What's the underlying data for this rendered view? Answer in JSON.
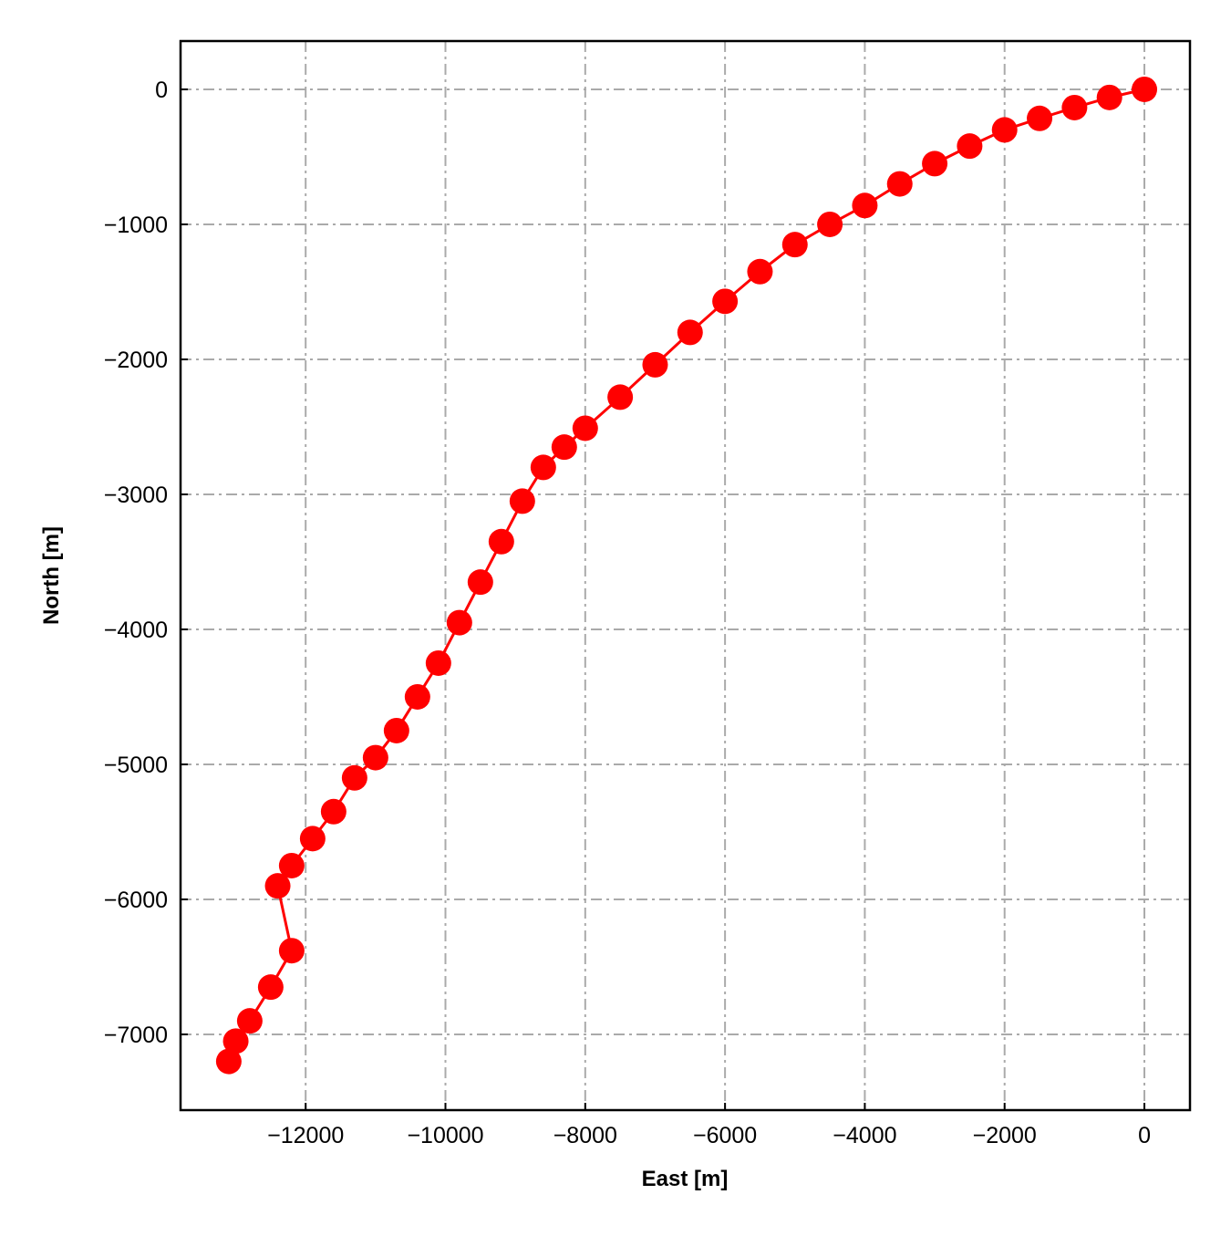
{
  "chart_data": {
    "type": "line",
    "xlabel": "East [m]",
    "ylabel": "North [m]",
    "series": [
      {
        "color": "#ff0000",
        "x": [
          0,
          -500,
          -1000,
          -1500,
          -2000,
          -2500,
          -3000,
          -3500,
          -4000,
          -4500,
          -5000,
          -5500,
          -6000,
          -6500,
          -7000,
          -7500,
          -8000,
          -8300,
          -8600,
          -8900,
          -9200,
          -9500,
          -9800,
          -10100,
          -10400,
          -10700,
          -11000,
          -11300,
          -11600,
          -11900,
          -12200,
          -12400,
          -12200,
          -12500,
          -12800,
          -13000,
          -13100
        ],
        "values": [
          0,
          -60,
          -135,
          -215,
          -300,
          -420,
          -550,
          -700,
          -860,
          -1000,
          -1150,
          -1350,
          -1570,
          -1800,
          -2040,
          -2280,
          -2510,
          -2650,
          -2800,
          -3050,
          -3350,
          -3650,
          -3950,
          -4250,
          -4500,
          -4750,
          -4950,
          -5100,
          -5350,
          -5550,
          -5750,
          -5900,
          -6380,
          -6650,
          -6900,
          -7050,
          -7200
        ]
      }
    ],
    "xlim": [
      -13790,
      652
    ],
    "ylim": [
      -7561,
      358
    ],
    "xticks": [
      {
        "value": -12000,
        "label": "−12000"
      },
      {
        "value": -10000,
        "label": "−10000"
      },
      {
        "value": -8000,
        "label": "−8000"
      },
      {
        "value": -6000,
        "label": "−6000"
      },
      {
        "value": -4000,
        "label": "−4000"
      },
      {
        "value": -2000,
        "label": "−2000"
      },
      0
    ],
    "yticks": [
      0,
      {
        "value": -1000,
        "label": "−1000"
      },
      {
        "value": -2000,
        "label": "−2000"
      },
      {
        "value": -3000,
        "label": "−3000"
      },
      {
        "value": -4000,
        "label": "−4000"
      },
      {
        "value": -5000,
        "label": "−5000"
      },
      {
        "value": -6000,
        "label": "−6000"
      },
      {
        "value": -7000,
        "label": "−7000"
      }
    ],
    "grid": true
  }
}
